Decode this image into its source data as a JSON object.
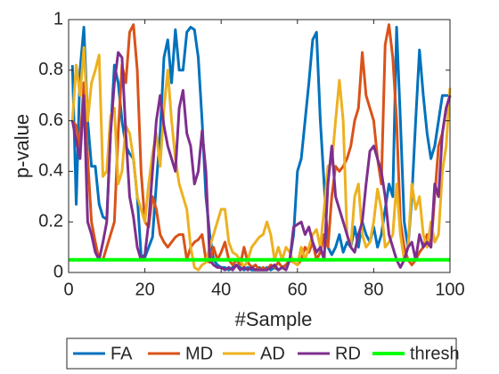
{
  "chart_data": {
    "type": "line",
    "xlabel": "#Sample",
    "ylabel": "p-value",
    "x": [
      1,
      2,
      3,
      4,
      5,
      6,
      7,
      8,
      9,
      10,
      11,
      12,
      13,
      14,
      15,
      16,
      17,
      18,
      19,
      20,
      21,
      22,
      23,
      24,
      25,
      26,
      27,
      28,
      29,
      30,
      31,
      32,
      33,
      34,
      35,
      36,
      37,
      38,
      39,
      40,
      41,
      42,
      43,
      44,
      45,
      46,
      47,
      48,
      49,
      50,
      51,
      52,
      53,
      54,
      55,
      56,
      57,
      58,
      59,
      60,
      61,
      62,
      63,
      64,
      65,
      66,
      67,
      68,
      69,
      70,
      71,
      72,
      73,
      74,
      75,
      76,
      77,
      78,
      79,
      80,
      81,
      82,
      83,
      84,
      85,
      86,
      87,
      88,
      89,
      90,
      91,
      92,
      93,
      94,
      95,
      96,
      97,
      98,
      99,
      100
    ],
    "series": [
      {
        "name": "FA",
        "color": "#0072BD",
        "values": [
          0.82,
          0.27,
          0.8,
          0.97,
          0.6,
          0.42,
          0.42,
          0.27,
          0.22,
          0.21,
          0.55,
          0.82,
          0.75,
          0.6,
          0.5,
          0.47,
          0.45,
          0.3,
          0.07,
          0.06,
          0.1,
          0.14,
          0.35,
          0.55,
          0.85,
          0.92,
          0.75,
          0.96,
          0.8,
          0.8,
          0.95,
          0.97,
          0.96,
          0.85,
          0.6,
          0.3,
          0.15,
          0.05,
          0.03,
          0.02,
          0.02,
          0.01,
          0.02,
          0.03,
          0.02,
          0.01,
          0.02,
          0.01,
          0.01,
          0.02,
          0.01,
          0.02,
          0.01,
          0.02,
          0.01,
          0.02,
          0.03,
          0.05,
          0.15,
          0.4,
          0.45,
          0.6,
          0.75,
          0.92,
          0.95,
          0.6,
          0.35,
          0.1,
          0.07,
          0.1,
          0.15,
          0.08,
          0.12,
          0.1,
          0.18,
          0.1,
          0.2,
          0.15,
          0.12,
          0.18,
          0.1,
          0.15,
          0.25,
          0.35,
          0.3,
          0.97,
          0.6,
          0.2,
          0.1,
          0.3,
          0.6,
          0.88,
          0.7,
          0.55,
          0.45,
          0.5,
          0.6,
          0.7,
          0.7,
          0.7
        ]
      },
      {
        "name": "MD",
        "color": "#D95319",
        "values": [
          0.6,
          0.58,
          0.5,
          0.75,
          0.45,
          0.2,
          0.12,
          0.05,
          0.05,
          0.1,
          0.15,
          0.2,
          0.55,
          0.82,
          0.75,
          0.95,
          0.98,
          0.8,
          0.4,
          0.2,
          0.18,
          0.3,
          0.25,
          0.15,
          0.12,
          0.1,
          0.12,
          0.14,
          0.15,
          0.15,
          0.05,
          0.1,
          0.12,
          0.13,
          0.15,
          0.05,
          0.04,
          0.1,
          0.05,
          0.08,
          0.12,
          0.05,
          0.03,
          0.05,
          0.03,
          0.1,
          0.04,
          0.02,
          0.03,
          0.01,
          0.02,
          0.01,
          0.03,
          0.02,
          0.04,
          0.02,
          0.03,
          0.05,
          0.04,
          0.03,
          0.05,
          0.1,
          0.08,
          0.12,
          0.05,
          0.08,
          0.15,
          0.1,
          0.3,
          0.42,
          0.4,
          0.42,
          0.45,
          0.5,
          0.6,
          0.65,
          0.87,
          0.7,
          0.65,
          0.6,
          0.45,
          0.35,
          0.9,
          0.98,
          0.85,
          0.6,
          0.2,
          0.1,
          0.05,
          0.03,
          0.05,
          0.08,
          0.1,
          0.15,
          0.1,
          0.3,
          0.5,
          0.55,
          0.65,
          0.7
        ]
      },
      {
        "name": "AD",
        "color": "#EDB120",
        "values": [
          0.6,
          0.82,
          0.7,
          0.89,
          0.6,
          0.75,
          0.8,
          0.86,
          0.38,
          0.4,
          0.62,
          0.65,
          0.35,
          0.4,
          0.58,
          0.55,
          0.45,
          0.3,
          0.25,
          0.2,
          0.35,
          0.47,
          0.55,
          0.42,
          0.65,
          0.8,
          0.6,
          0.45,
          0.35,
          0.3,
          0.25,
          0.1,
          0.02,
          0.01,
          0.03,
          0.04,
          0.1,
          0.15,
          0.2,
          0.25,
          0.25,
          0.12,
          0.08,
          0.07,
          0.05,
          0.02,
          0.05,
          0.1,
          0.12,
          0.14,
          0.15,
          0.2,
          0.15,
          0.05,
          0.1,
          0.05,
          0.1,
          0.08,
          0.04,
          0.03,
          0.1,
          0.05,
          0.1,
          0.15,
          0.17,
          0.1,
          0.25,
          0.42,
          0.43,
          0.6,
          0.76,
          0.6,
          0.15,
          0.1,
          0.3,
          0.35,
          0.15,
          0.1,
          0.12,
          0.2,
          0.33,
          0.25,
          0.1,
          0.12,
          0.15,
          0.35,
          0.15,
          0.05,
          0.1,
          0.35,
          0.25,
          0.3,
          0.15,
          0.1,
          0.2,
          0.12,
          0.15,
          0.4,
          0.5,
          0.73
        ]
      },
      {
        "name": "RD",
        "color": "#7E2F8E",
        "values": [
          0.6,
          0.52,
          0.45,
          0.7,
          0.2,
          0.15,
          0.08,
          0.05,
          0.12,
          0.2,
          0.55,
          0.75,
          0.87,
          0.85,
          0.55,
          0.3,
          0.22,
          0.1,
          0.05,
          0.07,
          0.2,
          0.4,
          0.6,
          0.7,
          0.58,
          0.5,
          0.45,
          0.4,
          0.65,
          0.72,
          0.55,
          0.5,
          0.35,
          0.4,
          0.56,
          0.4,
          0.05,
          0.03,
          0.02,
          0.02,
          0.01,
          0.02,
          0.01,
          0.03,
          0.01,
          0.02,
          0.01,
          0.02,
          0.01,
          0.01,
          0.01,
          0.01,
          0.02,
          0.03,
          0.01,
          0.02,
          0.01,
          0.05,
          0.18,
          0.19,
          0.2,
          0.15,
          0.18,
          0.12,
          0.08,
          0.1,
          0.05,
          0.35,
          0.5,
          0.3,
          0.25,
          0.2,
          0.15,
          0.1,
          0.08,
          0.15,
          0.2,
          0.35,
          0.48,
          0.5,
          0.45,
          0.4,
          0.3,
          0.15,
          0.1,
          0.05,
          0.02,
          0.05,
          0.1,
          0.12,
          0.05,
          0.15,
          0.1,
          0.12,
          0.1,
          0.35,
          0.3,
          0.55,
          0.65,
          0.7
        ]
      },
      {
        "name": "thresh",
        "color": "#00FF00",
        "x": [
          0,
          100
        ],
        "values": [
          0.05,
          0.05
        ]
      }
    ],
    "xlim": [
      0,
      100
    ],
    "xticks": [
      0,
      20,
      40,
      60,
      80,
      100
    ],
    "ylim": [
      0,
      1
    ],
    "yticks": [
      0,
      0.2,
      0.4,
      0.6,
      0.8,
      1
    ],
    "grid": false,
    "legend": "bottom"
  }
}
